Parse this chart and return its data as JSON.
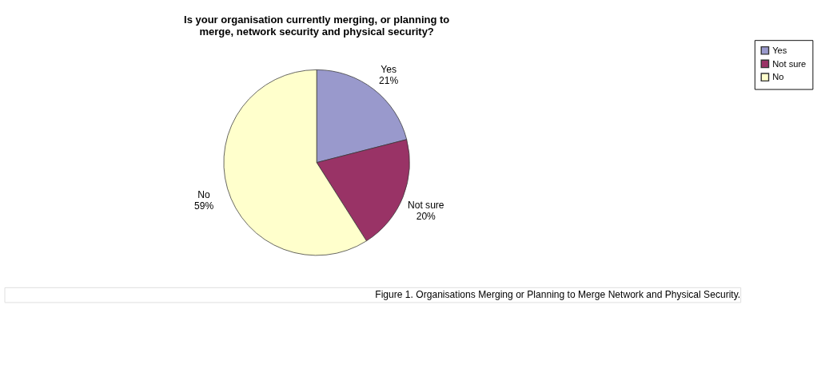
{
  "chart_data": {
    "type": "pie",
    "title": "Is your organisation currently merging, or planning to merge, network security and physical security?",
    "categories": [
      "Yes",
      "Not sure",
      "No"
    ],
    "values": [
      21,
      20,
      59
    ],
    "colors": [
      "#9999cc",
      "#993366",
      "#ffffcc"
    ],
    "value_labels": [
      "21%",
      "20%",
      "59%"
    ],
    "legend": "right",
    "annotations": [
      "Figure 1. Organisations Merging or Planning to Merge Network and Physical Security."
    ]
  }
}
